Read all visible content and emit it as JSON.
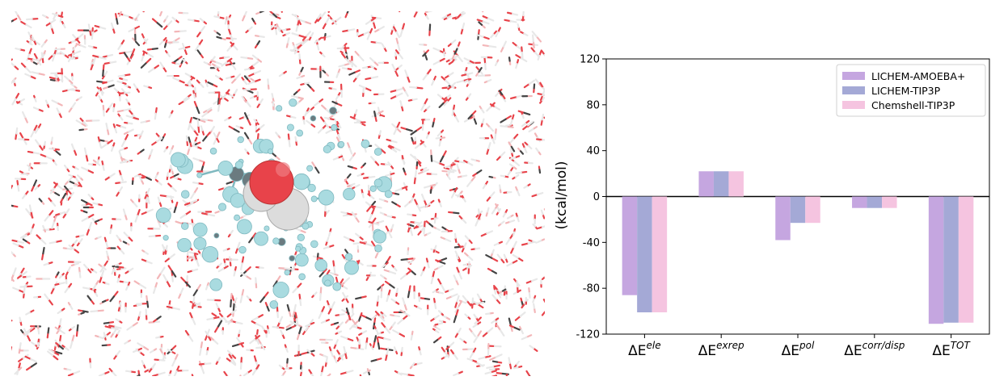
{
  "colors": {
    "bond_oxygen": "#e8434a",
    "bond_hydrogen": "#e8e8e8",
    "bond_light": "#f3b6b8",
    "carbon_dark": "#6b7b80",
    "cluster_atom": "#a9dbe0",
    "cluster_atom_shade": "#7fb9c0",
    "center_oxygen": "#e8434a",
    "center_hydrogen": "#dcdcdc"
  },
  "molecule_panel": {
    "description_icon": "molecular-snapshot"
  },
  "chart_data": {
    "type": "bar",
    "categories": [
      "ΔE^ele",
      "ΔE^exrep",
      "ΔE^pol",
      "ΔE^corr/disp",
      "ΔE^TOT"
    ],
    "category_labels": [
      {
        "base": "ΔE",
        "sup": "ele"
      },
      {
        "base": "ΔE",
        "sup": "exrep"
      },
      {
        "base": "ΔE",
        "sup": "pol"
      },
      {
        "base": "ΔE",
        "sup": "corr/disp"
      },
      {
        "base": "ΔE",
        "sup": "TOT"
      }
    ],
    "series": [
      {
        "name": "LICHEM-AMOEBA+",
        "color": "#c5a6e0",
        "values": [
          -86,
          22,
          -38,
          -10,
          -111
        ]
      },
      {
        "name": "LICHEM-TIP3P",
        "color": "#a4a9d6",
        "values": [
          -101,
          22,
          -23,
          -10,
          -110
        ]
      },
      {
        "name": "Chemshell-TIP3P",
        "color": "#f5c4e0",
        "values": [
          -101,
          22,
          -23,
          -10,
          -110
        ]
      }
    ],
    "ylabel": "(kcal/mol)",
    "ylim": [
      -120,
      120
    ],
    "yticks": [
      -120,
      -80,
      -40,
      0,
      40,
      80,
      120
    ],
    "legend_position": "top-right",
    "grid": false
  }
}
